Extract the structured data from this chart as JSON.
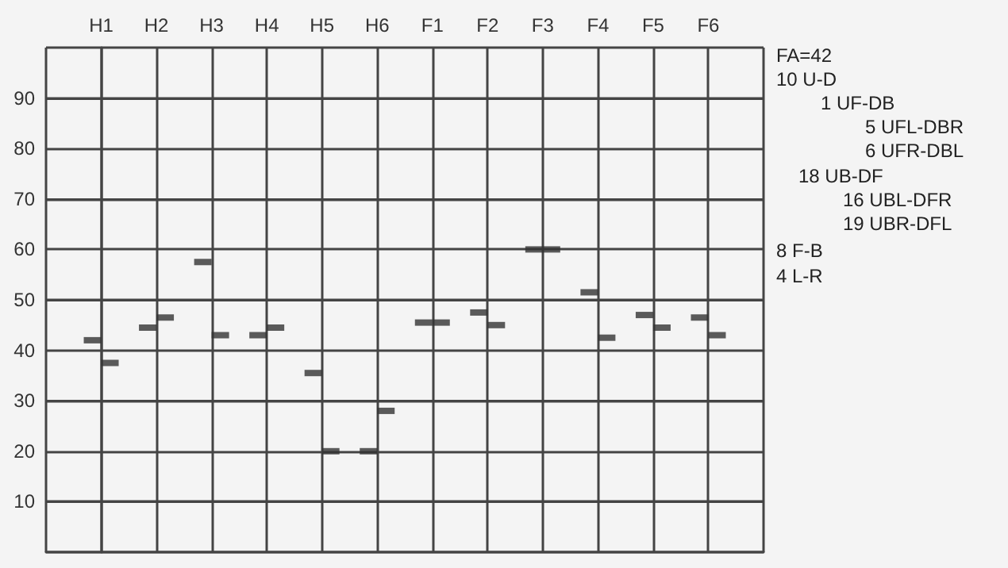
{
  "chart_data": {
    "type": "scatter",
    "categories": [
      "H1",
      "H2",
      "H3",
      "H4",
      "H5",
      "H6",
      "F1",
      "F2",
      "F3",
      "F4",
      "F5",
      "F6"
    ],
    "series": [
      {
        "color": "#333333",
        "values": [
          42,
          44.5,
          57.5,
          43,
          35.5,
          20,
          45.5,
          47.5,
          60,
          51.5,
          47,
          46.5
        ]
      },
      {
        "color": "#333333",
        "values": [
          37.5,
          46.5,
          43,
          44.5,
          20,
          28,
          45.5,
          45,
          60,
          42.5,
          44.5,
          43
        ]
      }
    ],
    "ylim": [
      0,
      100
    ],
    "yticks": [
      {
        "value": 0,
        "label": null
      },
      10,
      20,
      30,
      40,
      50,
      60,
      70,
      80,
      90,
      {
        "value": 100,
        "label": null
      }
    ],
    "grid": true,
    "annotations": [
      "FA=42",
      "10 U-D",
      "1 UF-DB",
      "5 UFL-DBR",
      "6 UFR-DBL",
      "18 UB-DF",
      "16 UBL-DFR",
      "19 UBR-DFL",
      "8 F-B",
      "4 L-R"
    ]
  }
}
